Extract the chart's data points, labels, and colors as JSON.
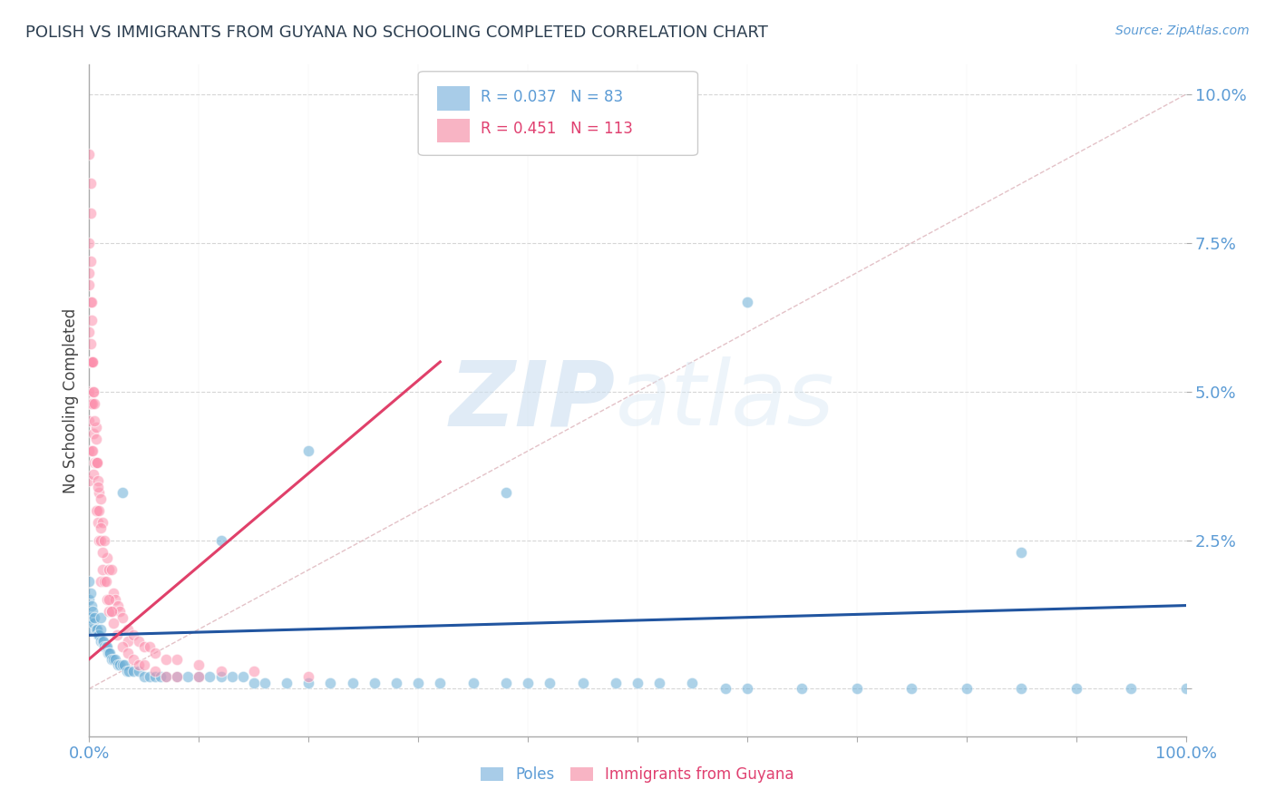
{
  "title": "POLISH VS IMMIGRANTS FROM GUYANA NO SCHOOLING COMPLETED CORRELATION CHART",
  "source": "Source: ZipAtlas.com",
  "ylabel": "No Schooling Completed",
  "xlim": [
    0.0,
    1.0
  ],
  "ylim": [
    -0.008,
    0.105
  ],
  "yticks": [
    0.0,
    0.025,
    0.05,
    0.075,
    0.1
  ],
  "ytick_labels": [
    "",
    "2.5%",
    "5.0%",
    "7.5%",
    "10.0%"
  ],
  "xtick_vals": [
    0.0,
    0.1,
    0.2,
    0.3,
    0.4,
    0.5,
    0.6,
    0.7,
    0.8,
    0.9,
    1.0
  ],
  "legend_label1": "Poles",
  "legend_label2": "Immigrants from Guyana",
  "color_blue": "#6baed6",
  "color_pink": "#fc8fac",
  "blue_line_color": "#2155a0",
  "pink_line_color": "#e0406a",
  "diag_line_color": "#d8a8b0",
  "title_color": "#2c3e50",
  "axis_color": "#5b9bd5",
  "blue_scatter_x": [
    0.0,
    0.0,
    0.0,
    0.001,
    0.001,
    0.002,
    0.002,
    0.003,
    0.004,
    0.005,
    0.006,
    0.007,
    0.008,
    0.009,
    0.01,
    0.01,
    0.01,
    0.012,
    0.013,
    0.014,
    0.015,
    0.016,
    0.017,
    0.018,
    0.019,
    0.02,
    0.022,
    0.024,
    0.026,
    0.028,
    0.03,
    0.032,
    0.034,
    0.036,
    0.04,
    0.045,
    0.05,
    0.055,
    0.06,
    0.065,
    0.07,
    0.08,
    0.09,
    0.1,
    0.11,
    0.12,
    0.13,
    0.14,
    0.15,
    0.16,
    0.18,
    0.2,
    0.22,
    0.24,
    0.26,
    0.28,
    0.3,
    0.32,
    0.35,
    0.38,
    0.4,
    0.42,
    0.45,
    0.48,
    0.5,
    0.52,
    0.55,
    0.58,
    0.6,
    0.65,
    0.7,
    0.75,
    0.8,
    0.85,
    0.9,
    0.95,
    1.0,
    0.03,
    0.12,
    0.2,
    0.38,
    0.6,
    0.85
  ],
  "blue_scatter_y": [
    0.018,
    0.015,
    0.012,
    0.016,
    0.012,
    0.014,
    0.01,
    0.013,
    0.011,
    0.012,
    0.01,
    0.01,
    0.009,
    0.009,
    0.008,
    0.01,
    0.012,
    0.008,
    0.008,
    0.007,
    0.007,
    0.007,
    0.006,
    0.006,
    0.006,
    0.005,
    0.005,
    0.005,
    0.004,
    0.004,
    0.004,
    0.004,
    0.003,
    0.003,
    0.003,
    0.003,
    0.002,
    0.002,
    0.002,
    0.002,
    0.002,
    0.002,
    0.002,
    0.002,
    0.002,
    0.002,
    0.002,
    0.002,
    0.001,
    0.001,
    0.001,
    0.001,
    0.001,
    0.001,
    0.001,
    0.001,
    0.001,
    0.001,
    0.001,
    0.001,
    0.001,
    0.001,
    0.001,
    0.001,
    0.001,
    0.001,
    0.001,
    0.0,
    0.0,
    0.0,
    0.0,
    0.0,
    0.0,
    0.0,
    0.0,
    0.0,
    0.0,
    0.033,
    0.025,
    0.04,
    0.033,
    0.065,
    0.023
  ],
  "pink_scatter_x": [
    0.0,
    0.0,
    0.0,
    0.0,
    0.0,
    0.0,
    0.0,
    0.0,
    0.001,
    0.001,
    0.001,
    0.001,
    0.001,
    0.002,
    0.002,
    0.002,
    0.002,
    0.003,
    0.003,
    0.003,
    0.004,
    0.004,
    0.004,
    0.005,
    0.005,
    0.006,
    0.006,
    0.006,
    0.007,
    0.007,
    0.008,
    0.008,
    0.009,
    0.009,
    0.01,
    0.01,
    0.01,
    0.012,
    0.012,
    0.014,
    0.014,
    0.016,
    0.016,
    0.018,
    0.018,
    0.02,
    0.02,
    0.022,
    0.024,
    0.026,
    0.028,
    0.03,
    0.035,
    0.035,
    0.04,
    0.045,
    0.05,
    0.055,
    0.06,
    0.07,
    0.08,
    0.1,
    0.12,
    0.15,
    0.2,
    0.0,
    0.0,
    0.001,
    0.001,
    0.002,
    0.003,
    0.004,
    0.005,
    0.006,
    0.007,
    0.008,
    0.009,
    0.01,
    0.012,
    0.015,
    0.018,
    0.02,
    0.022,
    0.025,
    0.03,
    0.035,
    0.04,
    0.045,
    0.05,
    0.06,
    0.07,
    0.08,
    0.1
  ],
  "pink_scatter_y": [
    0.075,
    0.068,
    0.06,
    0.055,
    0.05,
    0.045,
    0.04,
    0.035,
    0.08,
    0.072,
    0.065,
    0.055,
    0.048,
    0.062,
    0.055,
    0.048,
    0.04,
    0.055,
    0.048,
    0.04,
    0.05,
    0.043,
    0.036,
    0.048,
    0.038,
    0.044,
    0.038,
    0.03,
    0.038,
    0.03,
    0.035,
    0.028,
    0.033,
    0.025,
    0.032,
    0.025,
    0.018,
    0.028,
    0.02,
    0.025,
    0.018,
    0.022,
    0.015,
    0.02,
    0.013,
    0.02,
    0.013,
    0.016,
    0.015,
    0.014,
    0.013,
    0.012,
    0.01,
    0.008,
    0.009,
    0.008,
    0.007,
    0.007,
    0.006,
    0.005,
    0.005,
    0.004,
    0.003,
    0.003,
    0.002,
    0.09,
    0.07,
    0.085,
    0.058,
    0.065,
    0.055,
    0.05,
    0.045,
    0.042,
    0.038,
    0.034,
    0.03,
    0.027,
    0.023,
    0.018,
    0.015,
    0.013,
    0.011,
    0.009,
    0.007,
    0.006,
    0.005,
    0.004,
    0.004,
    0.003,
    0.002,
    0.002,
    0.002
  ],
  "blue_line_x": [
    0.0,
    1.0
  ],
  "blue_line_y": [
    0.009,
    0.014
  ],
  "pink_line_x": [
    0.0,
    0.32
  ],
  "pink_line_y": [
    0.005,
    0.055
  ],
  "diag_line_x": [
    0.0,
    1.0
  ],
  "diag_line_y": [
    0.0,
    0.1
  ]
}
